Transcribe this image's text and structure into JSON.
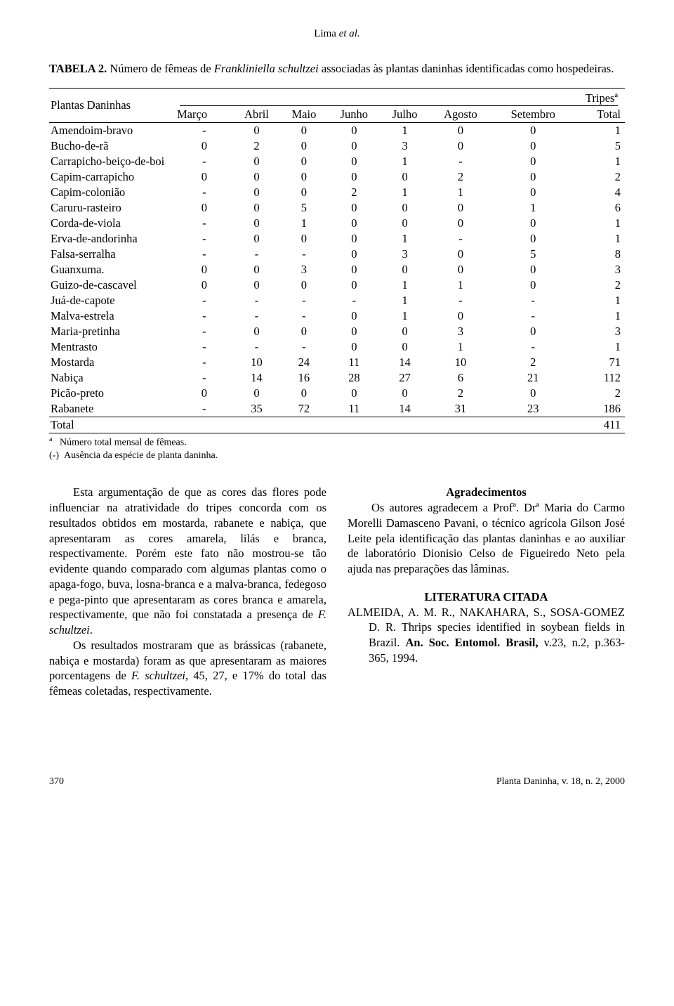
{
  "header": {
    "author_surname": "Lima",
    "etal": " et al."
  },
  "caption": {
    "label": "TABELA 2.",
    "text_pre": " Número de fêmeas de ",
    "text_ital": "Frankliniella schultzei",
    "text_post": " associadas às plantas daninhas identificadas como hospedeiras."
  },
  "table": {
    "col0_header": "Plantas Daninhas",
    "span_header": "Tripesª",
    "months": [
      "Março",
      "Abril",
      "Maio",
      "Junho",
      "Julho",
      "Agosto",
      "Setembro",
      "Total"
    ],
    "rows": [
      {
        "name": "Amendoim-bravo",
        "v": [
          "-",
          "0",
          "0",
          "0",
          "1",
          "0",
          "0",
          "1"
        ]
      },
      {
        "name": "Bucho-de-rã",
        "v": [
          "0",
          "2",
          "0",
          "0",
          "3",
          "0",
          "0",
          "5"
        ]
      },
      {
        "name": "Carrapicho-beiço-de-boi",
        "v": [
          "-",
          "0",
          "0",
          "0",
          "1",
          "-",
          "0",
          "1"
        ]
      },
      {
        "name": "Capim-carrapicho",
        "v": [
          "0",
          "0",
          "0",
          "0",
          "0",
          "2",
          "0",
          "2"
        ]
      },
      {
        "name": "Capim-colonião",
        "v": [
          "-",
          "0",
          "0",
          "2",
          "1",
          "1",
          "0",
          "4"
        ]
      },
      {
        "name": "Caruru-rasteiro",
        "v": [
          "0",
          "0",
          "5",
          "0",
          "0",
          "0",
          "1",
          "6"
        ]
      },
      {
        "name": "Corda-de-viola",
        "v": [
          "-",
          "0",
          "1",
          "0",
          "0",
          "0",
          "0",
          "1"
        ]
      },
      {
        "name": "Erva-de-andorinha",
        "v": [
          "-",
          "0",
          "0",
          "0",
          "1",
          "-",
          "0",
          "1"
        ]
      },
      {
        "name": "Falsa-serralha",
        "v": [
          "-",
          "-",
          "-",
          "0",
          "3",
          "0",
          "5",
          "8"
        ]
      },
      {
        "name": "Guanxuma.",
        "v": [
          "0",
          "0",
          "3",
          "0",
          "0",
          "0",
          "0",
          "3"
        ]
      },
      {
        "name": "Guizo-de-cascavel",
        "v": [
          "0",
          "0",
          "0",
          "0",
          "1",
          "1",
          "0",
          "2"
        ]
      },
      {
        "name": "Juá-de-capote",
        "v": [
          "-",
          "-",
          "-",
          "-",
          "1",
          "-",
          "-",
          "1"
        ]
      },
      {
        "name": "Malva-estrela",
        "v": [
          "-",
          "-",
          "-",
          "0",
          "1",
          "0",
          "-",
          "1"
        ]
      },
      {
        "name": "Maria-pretinha",
        "v": [
          "-",
          "0",
          "0",
          "0",
          "0",
          "3",
          "0",
          "3"
        ]
      },
      {
        "name": "Mentrasto",
        "v": [
          "-",
          "-",
          "-",
          "0",
          "0",
          "1",
          "-",
          "1"
        ]
      },
      {
        "name": "Mostarda",
        "v": [
          "-",
          "10",
          "24",
          "11",
          "14",
          "10",
          "2",
          "71"
        ]
      },
      {
        "name": "Nabiça",
        "v": [
          "-",
          "14",
          "16",
          "28",
          "27",
          "6",
          "21",
          "112"
        ]
      },
      {
        "name": "Picão-preto",
        "v": [
          "0",
          "0",
          "0",
          "0",
          "0",
          "2",
          "0",
          "2"
        ]
      },
      {
        "name": "Rabanete",
        "v": [
          "-",
          "35",
          "72",
          "11",
          "14",
          "31",
          "23",
          "186"
        ]
      }
    ],
    "total_label": "Total",
    "total_value": "411"
  },
  "footnotes": {
    "a": "Número total mensal de fêmeas.",
    "dash": "Ausência da espécie de planta daninha."
  },
  "leftcol": {
    "p1_a": "Esta argumentação de que as cores das flores pode influenciar na atratividade do tripes concorda com os resultados obtidos em mostarda, rabanete e nabiça, que apresentaram as cores amarela, lilás e branca, respectivamente. Porém este fato não mostrou-se tão evidente quando comparado com algumas plantas como o apaga-fogo, buva, losna-branca e a malva-branca, fedegoso e pega-pinto que apresentaram as cores branca e amarela, respectivamente, que não foi constatada a presença de ",
    "p1_ital": "F. schultzei",
    "p1_b": ".",
    "p2_a": "Os resultados mostraram que as brássicas (rabanete, nabiça e mostarda) foram as que apresentaram as maiores porcentagens de ",
    "p2_ital": "F. schultzei",
    "p2_b": ", 45, 27, e 17% do total das fêmeas coletadas, respectivamente."
  },
  "rightcol": {
    "h1": "Agradecimentos",
    "p1": "Os autores agradecem a Profª. Drª Maria do Carmo Morelli Damasceno Pavani, o técnico agrícola Gilson José Leite pela identificação das plantas daninhas e ao auxiliar de laboratório Dionisio Celso de Figueiredo Neto pela ajuda nas preparações das lâminas.",
    "h2": "LITERATURA CITADA",
    "ref_a": "ALMEIDA, A. M. R., NAKAHARA, S., SOSA-GOMEZ D. R.  Thrips species identified in soybean fields in Brazil. ",
    "ref_b": "An. Soc. Entomol. Brasil,",
    "ref_c": " v.23, n.2, p.363-365, 1994."
  },
  "footer": {
    "pagenum": "370",
    "journal": "Planta Daninha, v. 18, n. 2, 2000"
  }
}
